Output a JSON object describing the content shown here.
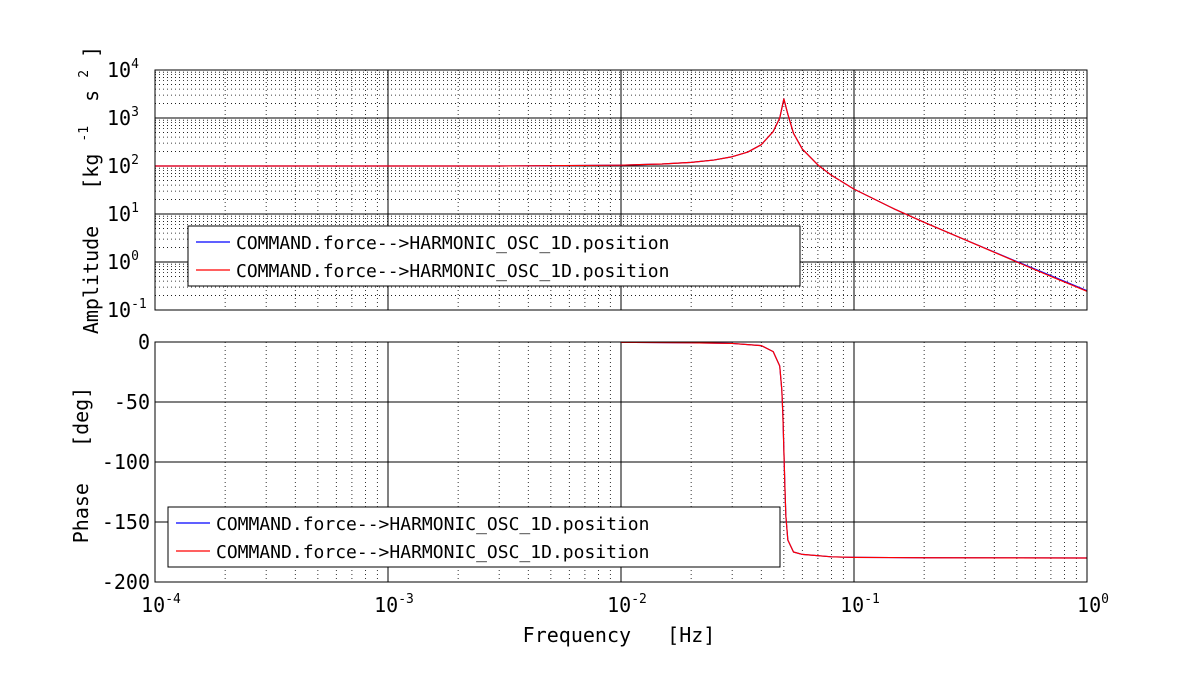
{
  "chart_data": [
    {
      "type": "line",
      "panel": "magnitude",
      "ylabel": "Amplitude   [kg⁻¹ s²]",
      "ylabel_parts": [
        "Amplitude",
        "[kg",
        "-1",
        "s",
        "2",
        "]"
      ],
      "xscale": "log",
      "yscale": "log",
      "xlim": [
        0.0001,
        1
      ],
      "ylim": [
        0.1,
        10000
      ],
      "grid": true,
      "minor_grid": true,
      "yticks": [
        {
          "value": 0.1,
          "base": "10",
          "exp": "-1"
        },
        {
          "value": 1,
          "base": "10",
          "exp": "0"
        },
        {
          "value": 10,
          "base": "10",
          "exp": "1"
        },
        {
          "value": 100,
          "base": "10",
          "exp": "2"
        },
        {
          "value": 1000,
          "base": "10",
          "exp": "3"
        },
        {
          "value": 10000,
          "base": "10",
          "exp": "4"
        }
      ],
      "legend_position": "lower-left",
      "series": [
        {
          "name": "COMMAND.force-->HARMONIC_OSC_1D.position",
          "color": "#0000ff",
          "x": [
            0.0001,
            0.0003,
            0.001,
            0.003,
            0.01,
            0.015,
            0.02,
            0.025,
            0.03,
            0.035,
            0.04,
            0.045,
            0.048,
            0.05,
            0.052,
            0.055,
            0.06,
            0.07,
            0.08,
            0.1,
            0.15,
            0.2,
            0.3,
            0.5,
            0.7,
            1
          ],
          "y": [
            100,
            100,
            100,
            100,
            104,
            110,
            119,
            133,
            156,
            195,
            278,
            522,
            1000,
            2500,
            1200,
            480,
            225,
            105,
            64,
            33,
            12.5,
            6.7,
            2.9,
            1.02,
            0.52,
            0.253
          ]
        },
        {
          "name": "COMMAND.force-->HARMONIC_OSC_1D.position",
          "color": "#ff0000",
          "x": [
            0.0001,
            0.0003,
            0.001,
            0.003,
            0.01,
            0.015,
            0.02,
            0.025,
            0.03,
            0.035,
            0.04,
            0.045,
            0.048,
            0.05,
            0.052,
            0.055,
            0.06,
            0.07,
            0.08,
            0.1,
            0.15,
            0.2,
            0.3,
            0.5,
            0.7,
            1
          ],
          "y": [
            100,
            100,
            100,
            100,
            104,
            110,
            119,
            133,
            156,
            195,
            278,
            522,
            1000,
            2500,
            1200,
            480,
            225,
            105,
            64,
            33,
            12.5,
            6.7,
            2.9,
            1.0,
            0.5,
            0.245
          ]
        }
      ]
    },
    {
      "type": "line",
      "panel": "phase",
      "xlabel": "Frequency   [Hz]",
      "ylabel": "Phase   [deg]",
      "xscale": "log",
      "yscale": "linear",
      "xlim": [
        0.0001,
        1
      ],
      "ylim": [
        -200,
        0
      ],
      "yticks": [
        {
          "value": 0,
          "label": "0"
        },
        {
          "value": -50,
          "label": "-50"
        },
        {
          "value": -100,
          "label": "-100"
        },
        {
          "value": -150,
          "label": "-150"
        },
        {
          "value": -200,
          "label": "-200"
        }
      ],
      "xticks": [
        {
          "value": 0.0001,
          "base": "10",
          "exp": "-4"
        },
        {
          "value": 0.001,
          "base": "10",
          "exp": "-3"
        },
        {
          "value": 0.01,
          "base": "10",
          "exp": "-2"
        },
        {
          "value": 0.1,
          "base": "10",
          "exp": "-1"
        },
        {
          "value": 1,
          "base": "10",
          "exp": "0"
        }
      ],
      "grid": true,
      "minor_grid": true,
      "legend_position": "lower-left",
      "series": [
        {
          "name": "COMMAND.force-->HARMONIC_OSC_1D.position",
          "color": "#0000ff",
          "x": [
            0.01,
            0.02,
            0.03,
            0.04,
            0.045,
            0.048,
            0.049,
            0.0495,
            0.05,
            0.0505,
            0.051,
            0.052,
            0.055,
            0.06,
            0.08,
            0.1,
            0.2,
            0.5,
            1
          ],
          "y": [
            -0.3,
            -0.6,
            -1.2,
            -3,
            -8,
            -20,
            -40,
            -60,
            -90,
            -120,
            -145,
            -165,
            -175,
            -177,
            -179,
            -179.5,
            -179.8,
            -179.9,
            -180
          ]
        },
        {
          "name": "COMMAND.force-->HARMONIC_OSC_1D.position",
          "color": "#ff0000",
          "x": [
            0.01,
            0.02,
            0.03,
            0.04,
            0.045,
            0.048,
            0.049,
            0.0495,
            0.05,
            0.0505,
            0.051,
            0.052,
            0.055,
            0.06,
            0.08,
            0.1,
            0.2,
            0.5,
            1
          ],
          "y": [
            -0.3,
            -0.6,
            -1.2,
            -3,
            -8,
            -20,
            -40,
            -60,
            -90,
            -120,
            -145,
            -165,
            -175,
            -177,
            -179,
            -179.5,
            -179.8,
            -179.9,
            -180
          ]
        }
      ]
    }
  ]
}
